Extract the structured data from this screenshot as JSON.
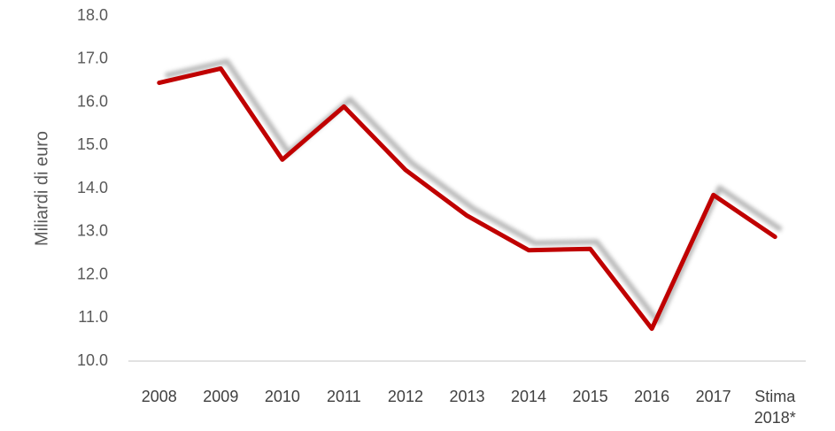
{
  "chart_data": {
    "type": "line",
    "y_axis_label": "Miliardi di euro",
    "categories": [
      "2008",
      "2009",
      "2010",
      "2011",
      "2012",
      "2013",
      "2014",
      "2015",
      "2016",
      "2017",
      "Stima 2018*"
    ],
    "series": [
      {
        "name": "Miliardi di euro",
        "color": "#c00000",
        "values": [
          16.45,
          16.78,
          14.67,
          15.9,
          14.43,
          13.37,
          12.57,
          12.6,
          10.75,
          13.85,
          12.88
        ]
      }
    ],
    "ylim": [
      10,
      18
    ],
    "yticks": [
      {
        "value": 10,
        "label": "10.0"
      },
      {
        "value": 11,
        "label": "11.0"
      },
      {
        "value": 12,
        "label": "12.0"
      },
      {
        "value": 13,
        "label": "13.0"
      },
      {
        "value": 14,
        "label": "14.0"
      },
      {
        "value": 15,
        "label": "15.0"
      },
      {
        "value": 16,
        "label": "16.0"
      },
      {
        "value": 17,
        "label": "17.0"
      },
      {
        "value": 18,
        "label": "18.0"
      }
    ],
    "grid": false
  }
}
